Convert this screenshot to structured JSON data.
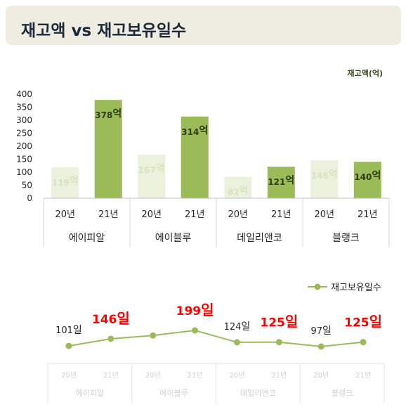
{
  "title": "재고액 vs 재고보유일수",
  "chart_data": [
    {
      "type": "bar",
      "unit_label": "재고액(억)",
      "ylim": [
        0,
        400
      ],
      "yticks": [
        "0",
        "50",
        "100",
        "150",
        "200",
        "250",
        "300",
        "350",
        "400"
      ],
      "groups": [
        "에이피알",
        "에이블루",
        "데일리앤코",
        "블랭크"
      ],
      "sub_categories": [
        "20년",
        "21년"
      ],
      "values": [
        [
          119,
          378
        ],
        [
          167,
          314
        ],
        [
          82,
          121
        ],
        [
          146,
          140
        ]
      ],
      "value_labels": [
        [
          "119억",
          "378억"
        ],
        [
          "167억",
          "314억"
        ],
        [
          "82억",
          "121억"
        ],
        [
          "146억",
          "140억"
        ]
      ],
      "colors": {
        "y20": "#ebf1dd",
        "y21": "#9bbb59",
        "label20": "#d7e4bd",
        "label21": "#2f3b13"
      }
    },
    {
      "type": "line",
      "legend": "재고보유일수",
      "legend_position": "top-right",
      "groups": [
        "에이피알",
        "에이블루",
        "데일리앤코",
        "블랭크"
      ],
      "sub_categories": [
        "20년",
        "21년"
      ],
      "values": [
        [
          101,
          146
        ],
        [
          167,
          199
        ],
        [
          124,
          125
        ],
        [
          97,
          125
        ]
      ],
      "value_labels": [
        [
          "101일",
          "146일"
        ],
        [
          "",
          "199일"
        ],
        [
          "124일",
          "125일"
        ],
        [
          "97일",
          "125일"
        ]
      ],
      "colors": {
        "line": "#9bbb59",
        "label_normal": "#262626",
        "label_highlight": "#ff0000"
      }
    }
  ]
}
